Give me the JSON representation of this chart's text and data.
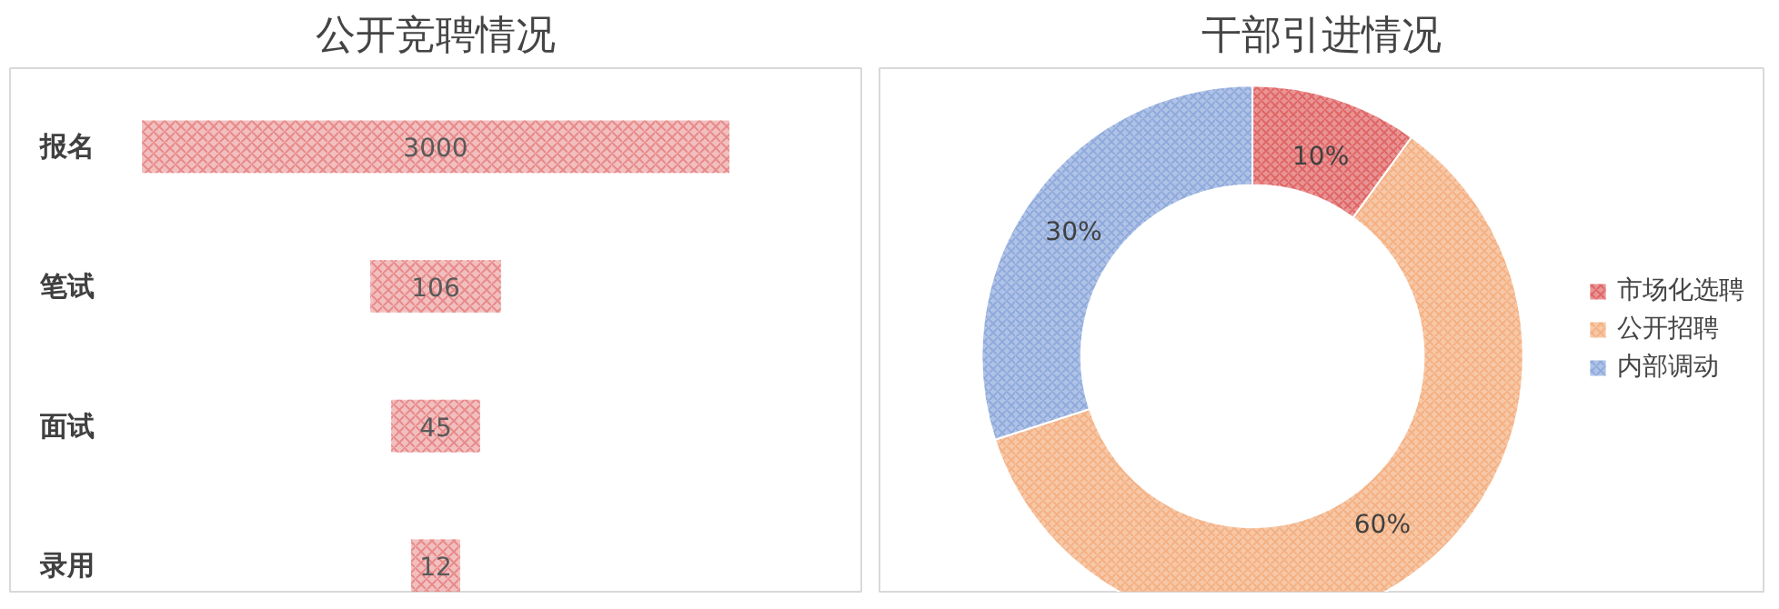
{
  "chart_data": [
    {
      "type": "other",
      "title": "公开竞聘情况",
      "categories": [
        "报名",
        "笔试",
        "面试",
        "录用"
      ],
      "values": [
        3000,
        106,
        45,
        12
      ],
      "color": "#e88a8a",
      "data_labels": true
    },
    {
      "type": "donut",
      "title": "干部引进情况",
      "categories": [
        "市场化选聘",
        "公开招聘",
        "内部调动"
      ],
      "values": [
        10,
        60,
        30
      ],
      "colors": [
        "#e06666",
        "#f4b183",
        "#8faadc"
      ],
      "value_labels": [
        "10%",
        "60%",
        "30%"
      ],
      "legend": "right"
    }
  ]
}
